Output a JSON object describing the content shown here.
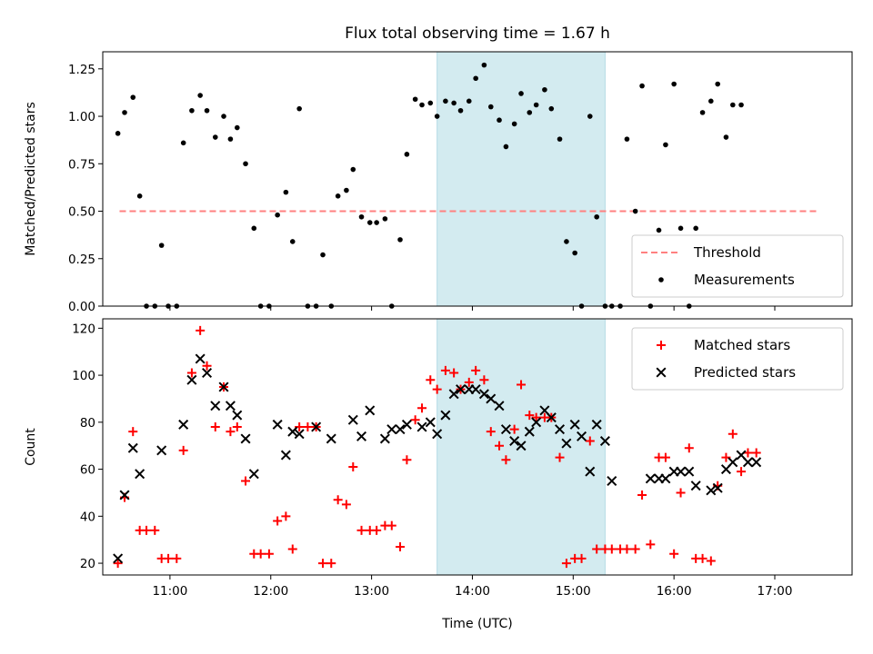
{
  "chart_data": [
    {
      "type": "scatter",
      "title": "Flux total observing time = 1.67 h",
      "xlabel": "",
      "ylabel": "Matched/Predicted stars",
      "xlim": [
        "10:20",
        "17:46"
      ],
      "ylim": [
        0,
        1.34
      ],
      "yticks": [
        "0.00",
        "0.25",
        "0.50",
        "0.75",
        "1.00",
        "1.25"
      ],
      "xticks": [
        "11:00",
        "12:00",
        "13:00",
        "14:00",
        "15:00",
        "16:00",
        "17:00"
      ],
      "show_xticklabels": false,
      "highlight_span": [
        "13:39",
        "15:19"
      ],
      "highlight_color": "#d3ebf0",
      "legend_position": "lower right",
      "threshold": {
        "name": "Threshold",
        "value": 0.5,
        "x_range": [
          "10:30",
          "17:25"
        ],
        "color": "#ff8080",
        "style": "dashed"
      },
      "series": [
        {
          "name": "Measurements",
          "marker": "dot",
          "color": "#000000",
          "points": [
            [
              "10:29",
              0.91
            ],
            [
              "10:33",
              1.02
            ],
            [
              "10:38",
              1.1
            ],
            [
              "10:42",
              0.58
            ],
            [
              "10:46",
              0.0
            ],
            [
              "10:51",
              0.0
            ],
            [
              "10:55",
              0.32
            ],
            [
              "10:59",
              0.0
            ],
            [
              "11:04",
              0.0
            ],
            [
              "11:08",
              0.86
            ],
            [
              "11:13",
              1.03
            ],
            [
              "11:18",
              1.11
            ],
            [
              "11:22",
              1.03
            ],
            [
              "11:27",
              0.89
            ],
            [
              "11:32",
              1.0
            ],
            [
              "11:36",
              0.88
            ],
            [
              "11:40",
              0.94
            ],
            [
              "11:45",
              0.75
            ],
            [
              "11:50",
              0.41
            ],
            [
              "11:54",
              0.0
            ],
            [
              "11:59",
              0.0
            ],
            [
              "12:04",
              0.48
            ],
            [
              "12:09",
              0.6
            ],
            [
              "12:13",
              0.34
            ],
            [
              "12:17",
              1.04
            ],
            [
              "12:22",
              0.0
            ],
            [
              "12:27",
              0.0
            ],
            [
              "12:31",
              0.27
            ],
            [
              "12:36",
              0.0
            ],
            [
              "12:40",
              0.58
            ],
            [
              "12:45",
              0.61
            ],
            [
              "12:49",
              0.72
            ],
            [
              "12:54",
              0.47
            ],
            [
              "12:59",
              0.44
            ],
            [
              "13:03",
              0.44
            ],
            [
              "13:08",
              0.46
            ],
            [
              "13:12",
              0.0
            ],
            [
              "13:17",
              0.35
            ],
            [
              "13:21",
              0.8
            ],
            [
              "13:26",
              1.09
            ],
            [
              "13:30",
              1.06
            ],
            [
              "13:35",
              1.07
            ],
            [
              "13:39",
              1.0
            ],
            [
              "13:44",
              1.08
            ],
            [
              "13:49",
              1.07
            ],
            [
              "13:53",
              1.03
            ],
            [
              "13:58",
              1.08
            ],
            [
              "14:02",
              1.2
            ],
            [
              "14:07",
              1.27
            ],
            [
              "14:11",
              1.05
            ],
            [
              "14:16",
              0.98
            ],
            [
              "14:20",
              0.84
            ],
            [
              "14:25",
              0.96
            ],
            [
              "14:29",
              1.12
            ],
            [
              "14:34",
              1.02
            ],
            [
              "14:38",
              1.06
            ],
            [
              "14:43",
              1.14
            ],
            [
              "14:47",
              1.04
            ],
            [
              "14:52",
              0.88
            ],
            [
              "14:56",
              0.34
            ],
            [
              "15:01",
              0.28
            ],
            [
              "15:05",
              0.0
            ],
            [
              "15:10",
              1.0
            ],
            [
              "15:14",
              0.47
            ],
            [
              "15:19",
              0.0
            ],
            [
              "15:23",
              0.0
            ],
            [
              "15:28",
              0.0
            ],
            [
              "15:32",
              0.88
            ],
            [
              "15:37",
              0.5
            ],
            [
              "15:41",
              1.16
            ],
            [
              "15:46",
              0.0
            ],
            [
              "15:51",
              0.4
            ],
            [
              "15:55",
              0.85
            ],
            [
              "16:00",
              1.17
            ],
            [
              "16:04",
              0.41
            ],
            [
              "16:09",
              0.0
            ],
            [
              "16:13",
              0.41
            ],
            [
              "16:17",
              1.02
            ],
            [
              "16:22",
              1.08
            ],
            [
              "16:26",
              1.17
            ],
            [
              "16:31",
              0.89
            ],
            [
              "16:35",
              1.06
            ],
            [
              "16:40",
              1.06
            ]
          ]
        }
      ]
    },
    {
      "type": "scatter",
      "title": "",
      "xlabel": "Time (UTC)",
      "ylabel": "Count",
      "xlim": [
        "10:20",
        "17:46"
      ],
      "ylim": [
        15,
        124
      ],
      "yticks": [
        "20",
        "40",
        "60",
        "80",
        "100",
        "120"
      ],
      "xticks": [
        "11:00",
        "12:00",
        "13:00",
        "14:00",
        "15:00",
        "16:00",
        "17:00"
      ],
      "show_xticklabels": true,
      "highlight_span": [
        "13:39",
        "15:19"
      ],
      "highlight_color": "#d3ebf0",
      "legend_position": "upper right",
      "series": [
        {
          "name": "Matched stars",
          "marker": "plus",
          "color": "#ff0000",
          "points": [
            [
              "10:29",
              20
            ],
            [
              "10:33",
              48
            ],
            [
              "10:38",
              76
            ],
            [
              "10:42",
              34
            ],
            [
              "10:46",
              34
            ],
            [
              "10:51",
              34
            ],
            [
              "10:55",
              22
            ],
            [
              "10:59",
              22
            ],
            [
              "11:04",
              22
            ],
            [
              "11:08",
              68
            ],
            [
              "11:13",
              101
            ],
            [
              "11:18",
              119
            ],
            [
              "11:22",
              104
            ],
            [
              "11:27",
              78
            ],
            [
              "11:32",
              95
            ],
            [
              "11:36",
              76
            ],
            [
              "11:40",
              78
            ],
            [
              "11:45",
              55
            ],
            [
              "11:50",
              24
            ],
            [
              "11:54",
              24
            ],
            [
              "11:59",
              24
            ],
            [
              "12:04",
              38
            ],
            [
              "12:09",
              40
            ],
            [
              "12:13",
              26
            ],
            [
              "12:17",
              78
            ],
            [
              "12:22",
              78
            ],
            [
              "12:27",
              78
            ],
            [
              "12:31",
              20
            ],
            [
              "12:36",
              20
            ],
            [
              "12:40",
              47
            ],
            [
              "12:45",
              45
            ],
            [
              "12:49",
              61
            ],
            [
              "12:54",
              34
            ],
            [
              "12:59",
              34
            ],
            [
              "13:03",
              34
            ],
            [
              "13:08",
              36
            ],
            [
              "13:12",
              36
            ],
            [
              "13:17",
              27
            ],
            [
              "13:21",
              64
            ],
            [
              "13:26",
              81
            ],
            [
              "13:30",
              86
            ],
            [
              "13:35",
              98
            ],
            [
              "13:39",
              94
            ],
            [
              "13:44",
              102
            ],
            [
              "13:49",
              101
            ],
            [
              "13:53",
              94
            ],
            [
              "13:58",
              97
            ],
            [
              "14:02",
              102
            ],
            [
              "14:07",
              98
            ],
            [
              "14:11",
              76
            ],
            [
              "14:16",
              70
            ],
            [
              "14:20",
              64
            ],
            [
              "14:25",
              77
            ],
            [
              "14:29",
              96
            ],
            [
              "14:34",
              83
            ],
            [
              "14:38",
              82
            ],
            [
              "14:43",
              82
            ],
            [
              "14:47",
              82
            ],
            [
              "14:52",
              65
            ],
            [
              "14:56",
              20
            ],
            [
              "15:01",
              22
            ],
            [
              "15:05",
              22
            ],
            [
              "15:10",
              72
            ],
            [
              "15:14",
              26
            ],
            [
              "15:19",
              26
            ],
            [
              "15:23",
              26
            ],
            [
              "15:28",
              26
            ],
            [
              "15:32",
              26
            ],
            [
              "15:37",
              26
            ],
            [
              "15:41",
              49
            ],
            [
              "15:46",
              28
            ],
            [
              "15:51",
              65
            ],
            [
              "15:55",
              65
            ],
            [
              "16:00",
              24
            ],
            [
              "16:04",
              50
            ],
            [
              "16:09",
              69
            ],
            [
              "16:13",
              22
            ],
            [
              "16:17",
              22
            ],
            [
              "16:22",
              21
            ],
            [
              "16:26",
              53
            ],
            [
              "16:31",
              65
            ],
            [
              "16:35",
              75
            ],
            [
              "16:40",
              59
            ],
            [
              "16:44",
              67
            ],
            [
              "16:49",
              67
            ]
          ]
        },
        {
          "name": "Predicted stars",
          "marker": "x",
          "color": "#000000",
          "points": [
            [
              "10:29",
              22
            ],
            [
              "10:33",
              49
            ],
            [
              "10:38",
              69
            ],
            [
              "10:42",
              58
            ],
            [
              "10:55",
              68
            ],
            [
              "11:08",
              79
            ],
            [
              "11:13",
              98
            ],
            [
              "11:18",
              107
            ],
            [
              "11:22",
              101
            ],
            [
              "11:27",
              87
            ],
            [
              "11:32",
              95
            ],
            [
              "11:36",
              87
            ],
            [
              "11:40",
              83
            ],
            [
              "11:45",
              73
            ],
            [
              "11:50",
              58
            ],
            [
              "12:04",
              79
            ],
            [
              "12:09",
              66
            ],
            [
              "12:13",
              76
            ],
            [
              "12:17",
              75
            ],
            [
              "12:27",
              78
            ],
            [
              "12:36",
              73
            ],
            [
              "12:49",
              81
            ],
            [
              "12:54",
              74
            ],
            [
              "12:59",
              85
            ],
            [
              "13:08",
              73
            ],
            [
              "13:12",
              77
            ],
            [
              "13:17",
              77
            ],
            [
              "13:21",
              79
            ],
            [
              "13:30",
              78
            ],
            [
              "13:35",
              80
            ],
            [
              "13:39",
              75
            ],
            [
              "13:44",
              83
            ],
            [
              "13:49",
              92
            ],
            [
              "13:53",
              94
            ],
            [
              "13:58",
              94
            ],
            [
              "14:02",
              94
            ],
            [
              "14:07",
              92
            ],
            [
              "14:11",
              90
            ],
            [
              "14:16",
              87
            ],
            [
              "14:20",
              77
            ],
            [
              "14:25",
              72
            ],
            [
              "14:29",
              70
            ],
            [
              "14:34",
              76
            ],
            [
              "14:38",
              80
            ],
            [
              "14:43",
              85
            ],
            [
              "14:47",
              82
            ],
            [
              "14:52",
              77
            ],
            [
              "14:56",
              71
            ],
            [
              "15:01",
              79
            ],
            [
              "15:05",
              74
            ],
            [
              "15:10",
              59
            ],
            [
              "15:14",
              79
            ],
            [
              "15:19",
              72
            ],
            [
              "15:23",
              55
            ],
            [
              "15:46",
              56
            ],
            [
              "15:51",
              56
            ],
            [
              "15:55",
              56
            ],
            [
              "16:00",
              59
            ],
            [
              "16:04",
              59
            ],
            [
              "16:09",
              59
            ],
            [
              "16:13",
              53
            ],
            [
              "16:22",
              51
            ],
            [
              "16:26",
              52
            ],
            [
              "16:31",
              60
            ],
            [
              "16:35",
              63
            ],
            [
              "16:40",
              66
            ],
            [
              "16:44",
              63
            ],
            [
              "16:49",
              63
            ]
          ]
        }
      ]
    }
  ]
}
